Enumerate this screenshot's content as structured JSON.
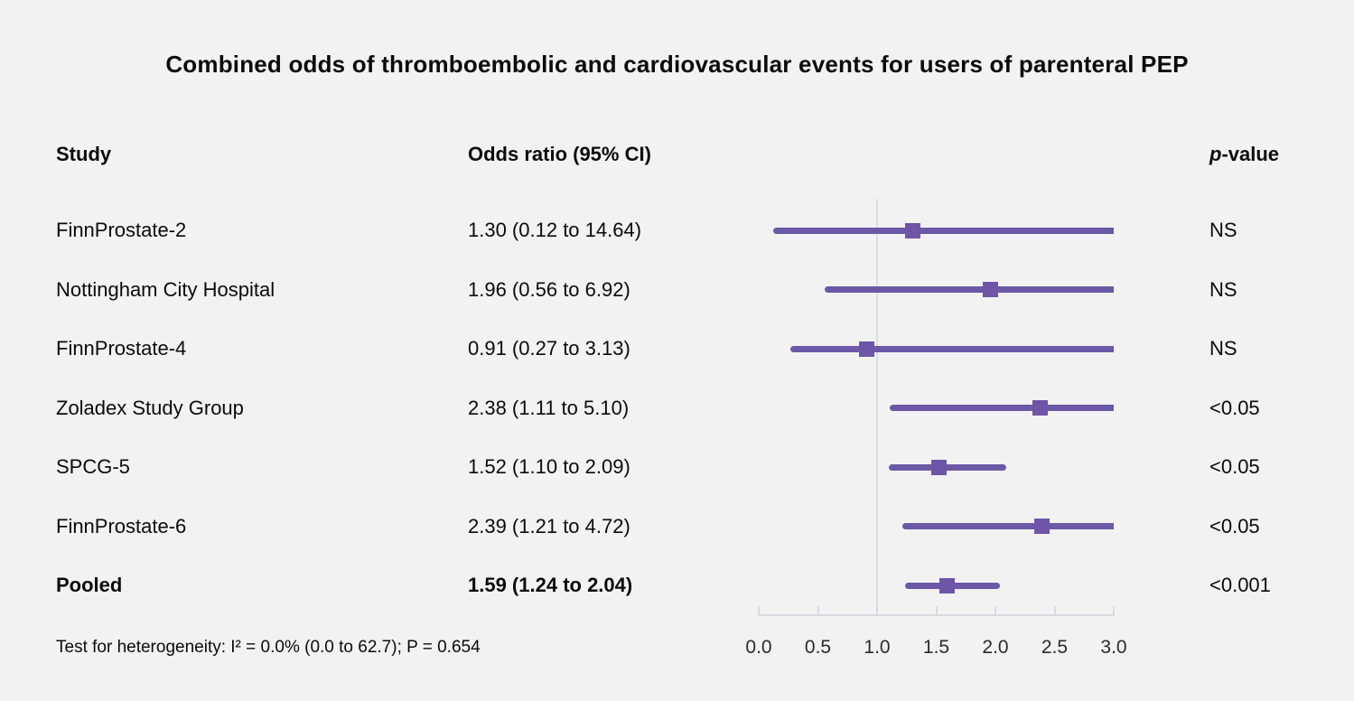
{
  "chart_data": {
    "type": "forest",
    "title": "Combined odds of thromboembolic and cardiovascular events for users of parenteral PEP",
    "columns": {
      "study": "Study",
      "or_ci": "Odds ratio (95% CI)",
      "p_italic": "p",
      "p_rest": "-value"
    },
    "studies": [
      {
        "study": "FinnProstate-2",
        "or": 1.3,
        "ci_low": 0.12,
        "ci_high": 14.64,
        "or_ci_label": "1.30 (0.12 to 14.64)",
        "p": "NS",
        "pooled": false
      },
      {
        "study": "Nottingham City Hospital",
        "or": 1.96,
        "ci_low": 0.56,
        "ci_high": 6.92,
        "or_ci_label": "1.96 (0.56 to 6.92)",
        "p": "NS",
        "pooled": false
      },
      {
        "study": "FinnProstate-4",
        "or": 0.91,
        "ci_low": 0.27,
        "ci_high": 3.13,
        "or_ci_label": "0.91 (0.27 to 3.13)",
        "p": "NS",
        "pooled": false
      },
      {
        "study": "Zoladex Study Group",
        "or": 2.38,
        "ci_low": 1.11,
        "ci_high": 5.1,
        "or_ci_label": "2.38 (1.11 to 5.10)",
        "p": "<0.05",
        "pooled": false
      },
      {
        "study": "SPCG-5",
        "or": 1.52,
        "ci_low": 1.1,
        "ci_high": 2.09,
        "or_ci_label": "1.52 (1.10 to 2.09)",
        "p": "<0.05",
        "pooled": false
      },
      {
        "study": "FinnProstate-6",
        "or": 2.39,
        "ci_low": 1.21,
        "ci_high": 4.72,
        "or_ci_label": "2.39 (1.21 to 4.72)",
        "p": "<0.05",
        "pooled": false
      },
      {
        "study": "Pooled",
        "or": 1.59,
        "ci_low": 1.24,
        "ci_high": 2.04,
        "or_ci_label": "1.59 (1.24 to 2.04)",
        "p": "<0.001",
        "pooled": true
      }
    ],
    "x_ticks": [
      "0.0",
      "0.5",
      "1.0",
      "1.5",
      "2.0",
      "2.5",
      "3.0"
    ],
    "x_range": [
      0.0,
      3.0
    ],
    "ref_line": 1.0,
    "xlabel": "",
    "ylabel": "",
    "grid": false,
    "legend": "none",
    "footnote": "Test for heterogeneity: I² = 0.0% (0.0 to 62.7); P = 0.654"
  },
  "colors": {
    "background": "#f2f2f2",
    "ci_line": "#6b58a6",
    "marker": "#6d55a8",
    "reference_line": "#d9dde6",
    "axis": "#d6dae1",
    "text": "#0b0b0b"
  }
}
